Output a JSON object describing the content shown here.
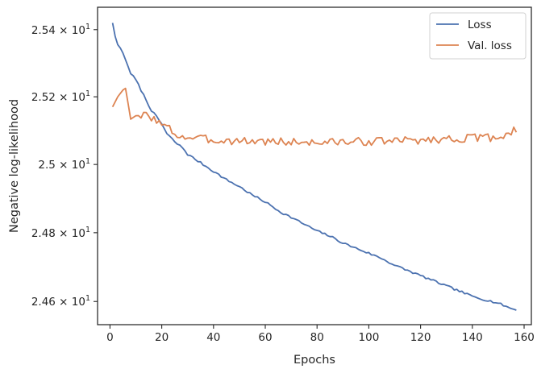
{
  "chart_data": {
    "type": "line",
    "title": "",
    "xlabel": "Epochs",
    "ylabel": "Negative log-likelihood",
    "xlim": [
      -4.8,
      162.8
    ],
    "ylim": [
      24.533,
      25.467
    ],
    "y_scale": "log",
    "grid": false,
    "legend_position": "top-right",
    "x_ticks": [
      {
        "value": 0,
        "label": "0"
      },
      {
        "value": 20,
        "label": "20"
      },
      {
        "value": 40,
        "label": "40"
      },
      {
        "value": 60,
        "label": "60"
      },
      {
        "value": 80,
        "label": "80"
      },
      {
        "value": 100,
        "label": "100"
      },
      {
        "value": 120,
        "label": "120"
      },
      {
        "value": 140,
        "label": "140"
      },
      {
        "value": 160,
        "label": "160"
      }
    ],
    "y_ticks": [
      {
        "value": 24.6,
        "mantissa": "2.46",
        "exponent": "1"
      },
      {
        "value": 24.8,
        "mantissa": "2.48",
        "exponent": "1"
      },
      {
        "value": 25.0,
        "mantissa": "2.5",
        "exponent": "1"
      },
      {
        "value": 25.2,
        "mantissa": "2.52",
        "exponent": "1"
      },
      {
        "value": 25.4,
        "mantissa": "2.54",
        "exponent": "1"
      }
    ],
    "times_symbol": "×",
    "exponent_base": "10",
    "series": [
      {
        "name": "Loss",
        "color": "#4c72b0",
        "anchors": [
          [
            1,
            25.42
          ],
          [
            2,
            25.38
          ],
          [
            3,
            25.355
          ],
          [
            4,
            25.345
          ],
          [
            5,
            25.33
          ],
          [
            6,
            25.31
          ],
          [
            8,
            25.27
          ],
          [
            10,
            25.25
          ],
          [
            12,
            25.22
          ],
          [
            14,
            25.19
          ],
          [
            16,
            25.16
          ],
          [
            18,
            25.14
          ],
          [
            20,
            25.12
          ],
          [
            22,
            25.09
          ],
          [
            24,
            25.075
          ],
          [
            26,
            25.06
          ],
          [
            28,
            25.05
          ],
          [
            30,
            25.03
          ],
          [
            32,
            25.02
          ],
          [
            35,
            25.005
          ],
          [
            38,
            24.99
          ],
          [
            41,
            24.975
          ],
          [
            45,
            24.955
          ],
          [
            50,
            24.935
          ],
          [
            55,
            24.91
          ],
          [
            60,
            24.89
          ],
          [
            63,
            24.875
          ],
          [
            66,
            24.86
          ],
          [
            70,
            24.845
          ],
          [
            75,
            24.825
          ],
          [
            80,
            24.805
          ],
          [
            85,
            24.79
          ],
          [
            90,
            24.77
          ],
          [
            95,
            24.755
          ],
          [
            100,
            24.74
          ],
          [
            105,
            24.725
          ],
          [
            110,
            24.705
          ],
          [
            115,
            24.69
          ],
          [
            120,
            24.675
          ],
          [
            125,
            24.66
          ],
          [
            130,
            24.645
          ],
          [
            135,
            24.63
          ],
          [
            140,
            24.615
          ],
          [
            145,
            24.605
          ],
          [
            150,
            24.595
          ],
          [
            155,
            24.58
          ],
          [
            157,
            24.575
          ]
        ],
        "noise_amp": 0.003,
        "seed": 7
      },
      {
        "name": "Val. loss",
        "color": "#dd8452",
        "anchors": [
          [
            1,
            25.17
          ],
          [
            3,
            25.2
          ],
          [
            5,
            25.22
          ],
          [
            6,
            25.225
          ],
          [
            7,
            25.18
          ],
          [
            8,
            25.14
          ],
          [
            10,
            25.135
          ],
          [
            12,
            25.14
          ],
          [
            14,
            25.15
          ],
          [
            16,
            25.14
          ],
          [
            18,
            25.13
          ],
          [
            20,
            25.115
          ],
          [
            22,
            25.11
          ],
          [
            24,
            25.1
          ],
          [
            26,
            25.085
          ],
          [
            30,
            25.08
          ],
          [
            40,
            25.072
          ],
          [
            60,
            25.068
          ],
          [
            80,
            25.065
          ],
          [
            100,
            25.068
          ],
          [
            120,
            25.072
          ],
          [
            140,
            25.078
          ],
          [
            150,
            25.08
          ],
          [
            155,
            25.095
          ],
          [
            156,
            25.11
          ],
          [
            157,
            25.095
          ]
        ],
        "noise_amp": 0.012,
        "seed": 3
      }
    ]
  }
}
